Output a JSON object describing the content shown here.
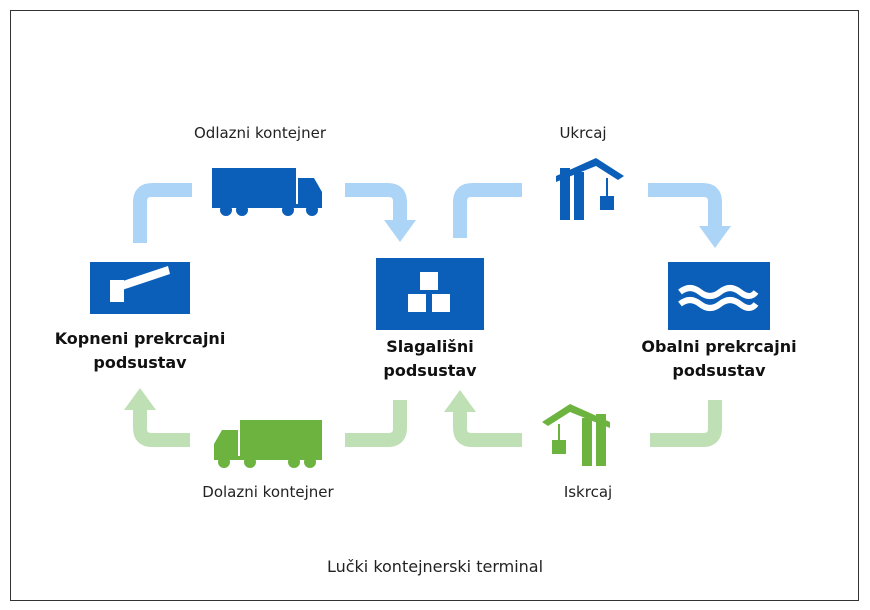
{
  "nodes": [
    {
      "lines": [
        "Kopneni prekrcajni",
        "podsustav"
      ]
    },
    {
      "lines": [
        "Slagališni",
        "podsustav"
      ]
    },
    {
      "lines": [
        "Obalni prekrcajni",
        "podsustav"
      ]
    }
  ],
  "flows": [
    {
      "label": "Odlazni kontejner"
    },
    {
      "label": "Ukrcaj"
    },
    {
      "label": "Dolazni kontejner"
    },
    {
      "label": "Iskrcaj"
    }
  ],
  "caption": "Lučki kontejnerski terminal"
}
